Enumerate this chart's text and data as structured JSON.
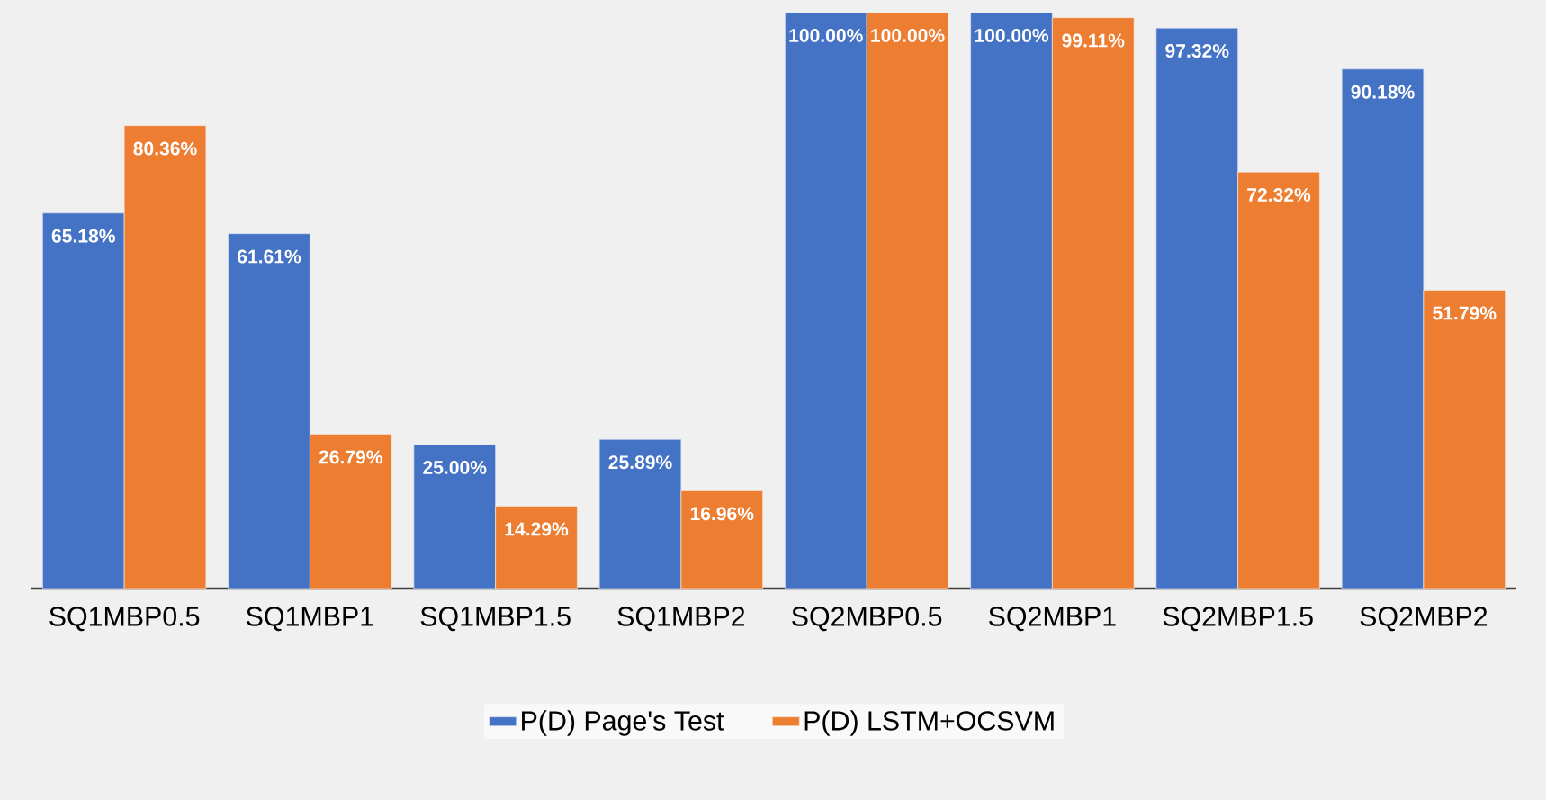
{
  "chart_data": {
    "type": "bar",
    "categories": [
      "SQ1MBP0.5",
      "SQ1MBP1",
      "SQ1MBP1.5",
      "SQ1MBP2",
      "SQ2MBP0.5",
      "SQ2MBP1",
      "SQ2MBP1.5",
      "SQ2MBP2"
    ],
    "series": [
      {
        "name": "P(D) Page's Test",
        "color": "#4472c4",
        "values": [
          65.18,
          61.61,
          25.0,
          25.89,
          100.0,
          100.0,
          97.32,
          90.18
        ],
        "value_labels": [
          "65.18%",
          "61.61%",
          "25.00%",
          "25.89%",
          "100.00%",
          "100.00%",
          "97.32%",
          "90.18%"
        ]
      },
      {
        "name": "P(D) LSTM+OCSVM",
        "color": "#ed7d31",
        "values": [
          80.36,
          26.79,
          14.29,
          16.96,
          100.0,
          99.11,
          72.32,
          51.79
        ],
        "value_labels": [
          "80.36%",
          "26.79%",
          "14.29%",
          "16.96%",
          "100.00%",
          "99.11%",
          "72.32%",
          "51.79%"
        ]
      }
    ],
    "legend": "bottom"
  }
}
